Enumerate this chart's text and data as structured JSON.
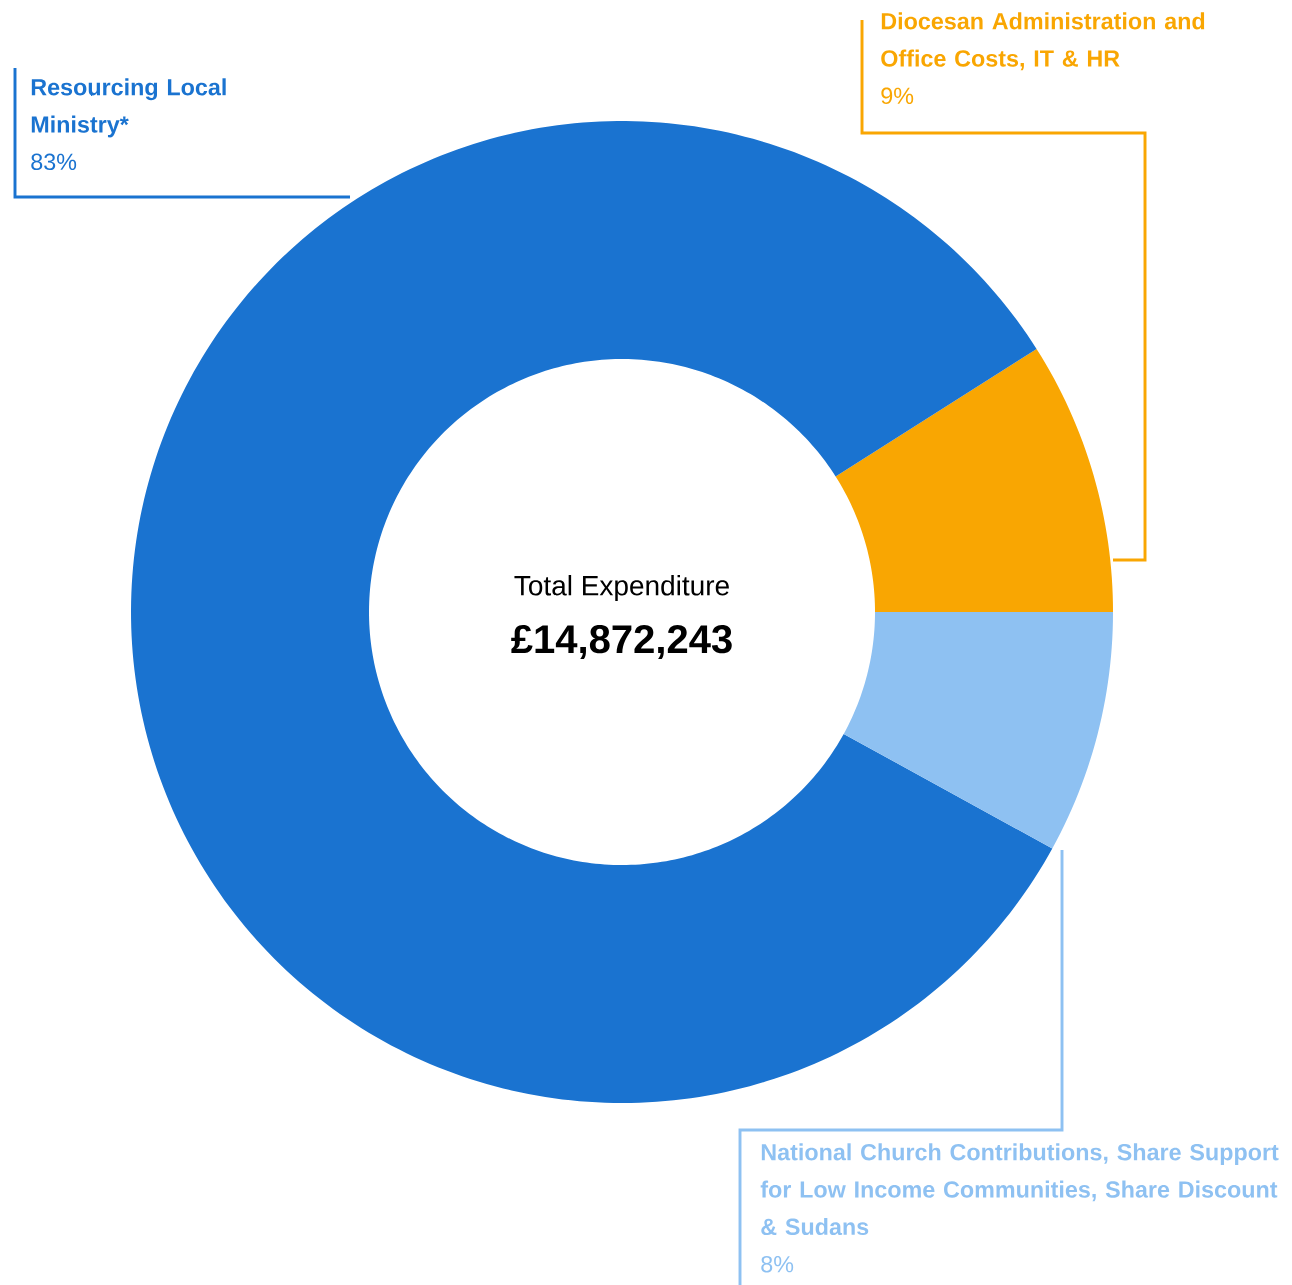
{
  "chart_data": {
    "type": "donut",
    "categories": [
      "Diocesan Administration and Office Costs, IT & HR",
      "Resourcing Local Ministry*",
      "National Church Contributions, Share Support for Low Income Communities, Share Discount & Sudans"
    ],
    "values": [
      9,
      83,
      8
    ],
    "colors": [
      "#f9a602",
      "#1a73d0",
      "#8ec1f2"
    ],
    "value_labels": [
      "9%",
      "83%",
      "8%"
    ],
    "annotations": [
      "Total Expenditure",
      "£14,872,243"
    ]
  }
}
